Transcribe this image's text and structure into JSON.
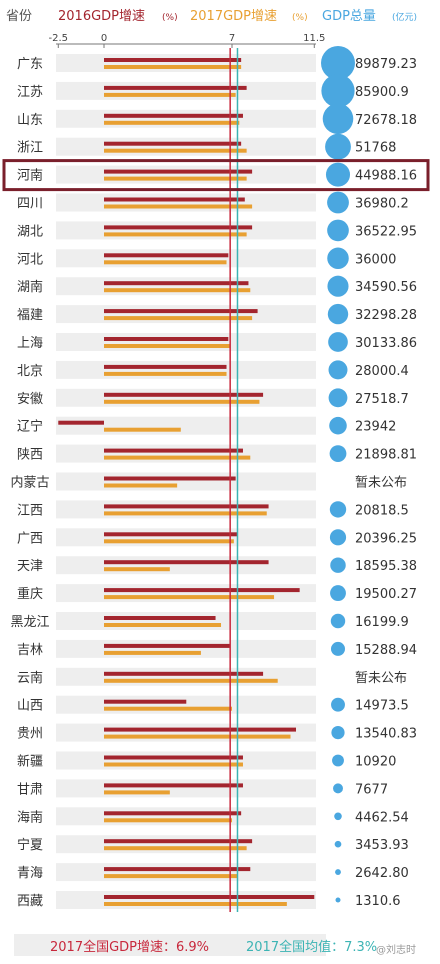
{
  "header": {
    "col_province": "省份",
    "legend_2016": "2016GDP增速",
    "legend_2016_unit": "(%)",
    "legend_2017": "2017GDP增速",
    "legend_2017_unit": "(%)",
    "legend_total": "GDP总量",
    "legend_total_unit": "(亿元)"
  },
  "colors": {
    "bar_2016": "#a3252e",
    "bar_2017": "#e8a032",
    "bubble": "#4aa7e0",
    "national_line_2017": "#c8283c",
    "national_avg_line": "#3cb4b4",
    "highlight_border": "#7a1f2b"
  },
  "chart_data": {
    "type": "bar",
    "x_ticks": [
      "-2.5",
      "0",
      "7",
      "11.5"
    ],
    "xlim": [
      -2.5,
      11.5
    ],
    "reference_lines": [
      {
        "value": 6.9,
        "color": "#c8283c"
      },
      {
        "value": 7.3,
        "color": "#3cb4b4"
      }
    ],
    "highlight": "河南",
    "provinces": [
      {
        "name": "广东",
        "g2016": 7.5,
        "g2017": 7.5,
        "total": 89879.23,
        "total_label": "89879.23"
      },
      {
        "name": "江苏",
        "g2016": 7.8,
        "g2017": 7.2,
        "total": 85900.9,
        "total_label": "85900.9"
      },
      {
        "name": "山东",
        "g2016": 7.6,
        "g2017": 7.4,
        "total": 72678.18,
        "total_label": "72678.18"
      },
      {
        "name": "浙江",
        "g2016": 7.5,
        "g2017": 7.8,
        "total": 51768,
        "total_label": "51768"
      },
      {
        "name": "河南",
        "g2016": 8.1,
        "g2017": 7.8,
        "total": 44988.16,
        "total_label": "44988.16"
      },
      {
        "name": "四川",
        "g2016": 7.7,
        "g2017": 8.1,
        "total": 36980.2,
        "total_label": "36980.2"
      },
      {
        "name": "湖北",
        "g2016": 8.1,
        "g2017": 7.8,
        "total": 36522.95,
        "total_label": "36522.95"
      },
      {
        "name": "河北",
        "g2016": 6.8,
        "g2017": 6.7,
        "total": 36000,
        "total_label": "36000"
      },
      {
        "name": "湖南",
        "g2016": 7.9,
        "g2017": 8.0,
        "total": 34590.56,
        "total_label": "34590.56"
      },
      {
        "name": "福建",
        "g2016": 8.4,
        "g2017": 8.1,
        "total": 32298.28,
        "total_label": "32298.28"
      },
      {
        "name": "上海",
        "g2016": 6.8,
        "g2017": 6.9,
        "total": 30133.86,
        "total_label": "30133.86"
      },
      {
        "name": "北京",
        "g2016": 6.7,
        "g2017": 6.7,
        "total": 28000.4,
        "total_label": "28000.4"
      },
      {
        "name": "安徽",
        "g2016": 8.7,
        "g2017": 8.5,
        "total": 27518.7,
        "total_label": "27518.7"
      },
      {
        "name": "辽宁",
        "g2016": -2.5,
        "g2017": 4.2,
        "total": 23942,
        "total_label": "23942"
      },
      {
        "name": "陕西",
        "g2016": 7.6,
        "g2017": 8.0,
        "total": 21898.81,
        "total_label": "21898.81"
      },
      {
        "name": "内蒙古",
        "g2016": 7.2,
        "g2017": 4.0,
        "total": null,
        "total_label": "暂未公布"
      },
      {
        "name": "江西",
        "g2016": 9.0,
        "g2017": 8.9,
        "total": 20818.5,
        "total_label": "20818.5"
      },
      {
        "name": "广西",
        "g2016": 7.3,
        "g2017": 7.1,
        "total": 20396.25,
        "total_label": "20396.25"
      },
      {
        "name": "天津",
        "g2016": 9.0,
        "g2017": 3.6,
        "total": 18595.38,
        "total_label": "18595.38"
      },
      {
        "name": "重庆",
        "g2016": 10.7,
        "g2017": 9.3,
        "total": 19500.27,
        "total_label": "19500.27"
      },
      {
        "name": "黑龙江",
        "g2016": 6.1,
        "g2017": 6.4,
        "total": 16199.9,
        "total_label": "16199.9"
      },
      {
        "name": "吉林",
        "g2016": 6.9,
        "g2017": 5.3,
        "total": 15288.94,
        "total_label": "15288.94"
      },
      {
        "name": "云南",
        "g2016": 8.7,
        "g2017": 9.5,
        "total": null,
        "total_label": "暂未公布"
      },
      {
        "name": "山西",
        "g2016": 4.5,
        "g2017": 7.0,
        "total": 14973.5,
        "total_label": "14973.5"
      },
      {
        "name": "贵州",
        "g2016": 10.5,
        "g2017": 10.2,
        "total": 13540.83,
        "total_label": "13540.83"
      },
      {
        "name": "新疆",
        "g2016": 7.6,
        "g2017": 7.6,
        "total": 10920,
        "total_label": "10920"
      },
      {
        "name": "甘肃",
        "g2016": 7.6,
        "g2017": 3.6,
        "total": 7677,
        "total_label": "7677"
      },
      {
        "name": "海南",
        "g2016": 7.5,
        "g2017": 7.0,
        "total": 4462.54,
        "total_label": "4462.54"
      },
      {
        "name": "宁夏",
        "g2016": 8.1,
        "g2017": 7.8,
        "total": 3453.93,
        "total_label": "3453.93"
      },
      {
        "name": "青海",
        "g2016": 8.0,
        "g2017": 7.3,
        "total": 2642.8,
        "total_label": "2642.80"
      },
      {
        "name": "西藏",
        "g2016": 11.5,
        "g2017": 10.0,
        "total": 1310.6,
        "total_label": "1310.6"
      }
    ]
  },
  "footer": {
    "national_2017": "2017全国GDP增速：6.9%",
    "national_avg": "2017全国均值：7.3%",
    "watermark": "@刘志时"
  }
}
